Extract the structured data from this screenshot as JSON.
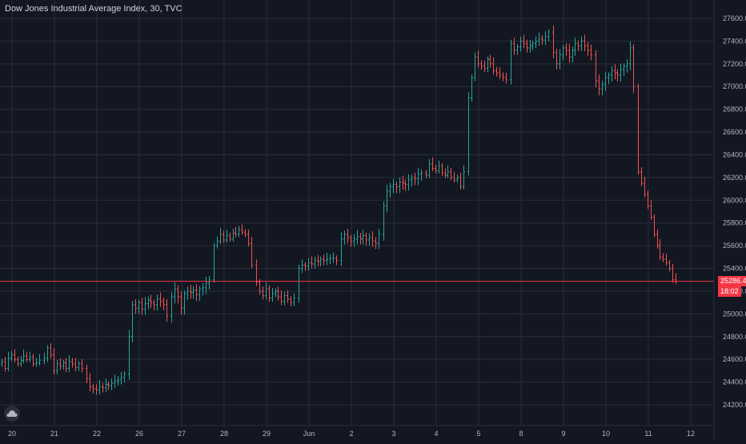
{
  "header": {
    "title": "Dow Jones Industrial Average Index, 30, TVC"
  },
  "colors": {
    "background": "#131722",
    "grid": "#2a2e39",
    "up": "#26a69a",
    "down": "#ef5350",
    "price_line": "#f23645",
    "axis_text": "#b2b5be"
  },
  "price_axis": {
    "current_price_label": "25286.4",
    "countdown_label": "18:02"
  },
  "chart_data": {
    "type": "ohlc",
    "title": "Dow Jones Industrial Average Index, 30, TVC",
    "xlabel": "",
    "ylabel": "",
    "ylim": [
      24050,
      27800
    ],
    "y_ticks": [
      24200,
      24400,
      24600,
      24800,
      25000,
      25200,
      25400,
      25600,
      25800,
      26000,
      26200,
      26400,
      26600,
      26800,
      27000,
      27200,
      27400,
      27600
    ],
    "x_tick_labels": [
      "20",
      "21",
      "22",
      "26",
      "27",
      "28",
      "29",
      "Jun",
      "2",
      "3",
      "4",
      "5",
      "8",
      "9",
      "10",
      "11",
      "12"
    ],
    "grid": true,
    "current_price": 25286.4,
    "sessions": [
      {
        "label": "20",
        "closes": [
          24580,
          24520,
          24610,
          24640,
          24600,
          24560,
          24590,
          24630,
          24600,
          24620,
          24560,
          24570,
          24590
        ]
      },
      {
        "label": "21",
        "closes": [
          24610,
          24700,
          24640,
          24500,
          24560,
          24540,
          24570,
          24520,
          24580,
          24560,
          24530,
          24560,
          24520
        ]
      },
      {
        "label": "22",
        "closes": [
          24430,
          24360,
          24340,
          24330,
          24360,
          24350,
          24380,
          24370,
          24390,
          24410,
          24420,
          24440,
          24470
        ]
      },
      {
        "label": "26",
        "closes": [
          24800,
          25080,
          25050,
          25100,
          25040,
          25090,
          25120,
          25100,
          25080,
          25130,
          25110,
          25080,
          24980
        ]
      },
      {
        "label": "27",
        "closes": [
          25150,
          25220,
          25150,
          25050,
          25180,
          25200,
          25190,
          25210,
          25170,
          25220,
          25230,
          25270,
          25300
        ]
      },
      {
        "label": "28",
        "closes": [
          25600,
          25640,
          25700,
          25650,
          25690,
          25660,
          25710,
          25700,
          25740,
          25720,
          25700,
          25620,
          25430
        ]
      },
      {
        "label": "29",
        "closes": [
          25280,
          25200,
          25160,
          25220,
          25140,
          25180,
          25200,
          25150,
          25110,
          25160,
          25130,
          25100,
          25140
        ]
      },
      {
        "label": "Jun",
        "closes": [
          25400,
          25430,
          25420,
          25450,
          25440,
          25470,
          25460,
          25480,
          25470,
          25480,
          25490,
          25490,
          25470
        ]
      },
      {
        "label": "2",
        "closes": [
          25660,
          25700,
          25670,
          25640,
          25660,
          25680,
          25660,
          25690,
          25650,
          25670,
          25640,
          25620,
          25700
        ]
      },
      {
        "label": "3",
        "closes": [
          25950,
          26080,
          26120,
          26140,
          26120,
          26160,
          26150,
          26140,
          26180,
          26200,
          26190,
          26230,
          26240
        ]
      },
      {
        "label": "4",
        "closes": [
          26220,
          26320,
          26280,
          26260,
          26300,
          26240,
          26220,
          26250,
          26200,
          26180,
          26200,
          26120,
          26250
        ]
      },
      {
        "label": "5",
        "closes": [
          26900,
          27080,
          27260,
          27200,
          27180,
          27160,
          27240,
          27200,
          27140,
          27120,
          27100,
          27080,
          27060
        ]
      },
      {
        "label": "8",
        "closes": [
          27380,
          27320,
          27350,
          27400,
          27380,
          27340,
          27360,
          27380,
          27400,
          27420,
          27410,
          27440,
          27480
        ]
      },
      {
        "label": "9",
        "closes": [
          27300,
          27200,
          27280,
          27340,
          27320,
          27260,
          27320,
          27380,
          27360,
          27400,
          27360,
          27320,
          27280
        ]
      },
      {
        "label": "10",
        "closes": [
          27050,
          26980,
          27020,
          27080,
          27100,
          27140,
          27120,
          27100,
          27150,
          27180,
          27200,
          27340,
          27000
        ]
      },
      {
        "label": "11",
        "closes": [
          26250,
          26150,
          26050,
          25950,
          25850,
          25700,
          25600,
          25500,
          25480,
          25450,
          25400,
          25300,
          25286
        ]
      }
    ]
  }
}
